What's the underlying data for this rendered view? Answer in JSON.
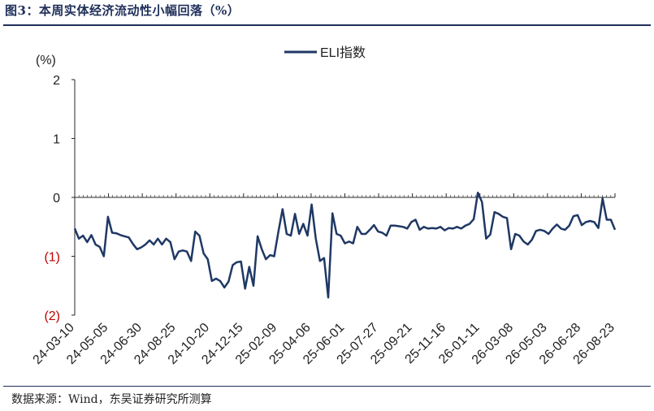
{
  "header": {
    "title": "图3：本周实体经济流动性小幅回落（%）"
  },
  "footer": {
    "source": "数据来源：Wind，东吴证券研究所测算"
  },
  "colors": {
    "line": "#1f3864",
    "negative_tick": "#c00000",
    "axis": "#262626",
    "title": "#1f2f5a"
  },
  "chart_data": {
    "type": "line",
    "ylabel": "(%)",
    "ylim": [
      -2,
      2
    ],
    "y_ticks": [
      {
        "value": 2,
        "label": "2"
      },
      {
        "value": 1,
        "label": "1"
      },
      {
        "value": 0,
        "label": "0"
      },
      {
        "value": -1,
        "label": "(1)"
      },
      {
        "value": -2,
        "label": "(2)"
      }
    ],
    "x_tick_labels": [
      "24-03-10",
      "24-05-05",
      "24-06-30",
      "24-08-25",
      "24-10-20",
      "24-12-15",
      "25-02-09",
      "25-04-06",
      "25-06-01",
      "25-07-27",
      "25-09-21",
      "25-11-16",
      "26-01-11",
      "26-03-08",
      "26-05-03",
      "26-06-28",
      "26-08-23"
    ],
    "legend": {
      "position": "top-center"
    },
    "series": [
      {
        "name": "ELI指数",
        "start_date": "24-03-10",
        "step_days": 7,
        "values": [
          -0.53,
          -0.7,
          -0.65,
          -0.76,
          -0.64,
          -0.8,
          -0.84,
          -1.0,
          -0.33,
          -0.6,
          -0.61,
          -0.64,
          -0.66,
          -0.68,
          -0.79,
          -0.88,
          -0.85,
          -0.8,
          -0.73,
          -0.8,
          -0.7,
          -0.8,
          -0.7,
          -0.76,
          -1.05,
          -0.92,
          -0.9,
          -0.92,
          -1.08,
          -0.58,
          -0.65,
          -0.95,
          -1.05,
          -1.42,
          -1.38,
          -1.42,
          -1.53,
          -1.43,
          -1.15,
          -1.1,
          -1.09,
          -1.55,
          -1.18,
          -1.5,
          -0.66,
          -0.88,
          -1.05,
          -0.98,
          -1.0,
          -0.58,
          -0.2,
          -0.62,
          -0.65,
          -0.28,
          -0.62,
          -0.45,
          -0.65,
          -0.12,
          -0.7,
          -1.08,
          -1.03,
          -1.7,
          -0.27,
          -0.62,
          -0.65,
          -0.78,
          -0.75,
          -0.78,
          -0.5,
          -0.62,
          -0.62,
          -0.55,
          -0.47,
          -0.58,
          -0.6,
          -0.65,
          -0.48,
          -0.48,
          -0.49,
          -0.5,
          -0.53,
          -0.42,
          -0.38,
          -0.55,
          -0.5,
          -0.53,
          -0.52,
          -0.53,
          -0.5,
          -0.56,
          -0.52,
          -0.53,
          -0.5,
          -0.53,
          -0.48,
          -0.45,
          -0.37,
          0.08,
          -0.08,
          -0.7,
          -0.63,
          -0.25,
          -0.28,
          -0.33,
          -0.35,
          -0.88,
          -0.62,
          -0.65,
          -0.75,
          -0.8,
          -0.72,
          -0.57,
          -0.55,
          -0.57,
          -0.62,
          -0.53,
          -0.46,
          -0.53,
          -0.55,
          -0.48,
          -0.32,
          -0.3,
          -0.47,
          -0.42,
          -0.4,
          -0.42,
          -0.52,
          -0.02,
          -0.38,
          -0.38,
          -0.55
        ]
      }
    ]
  }
}
